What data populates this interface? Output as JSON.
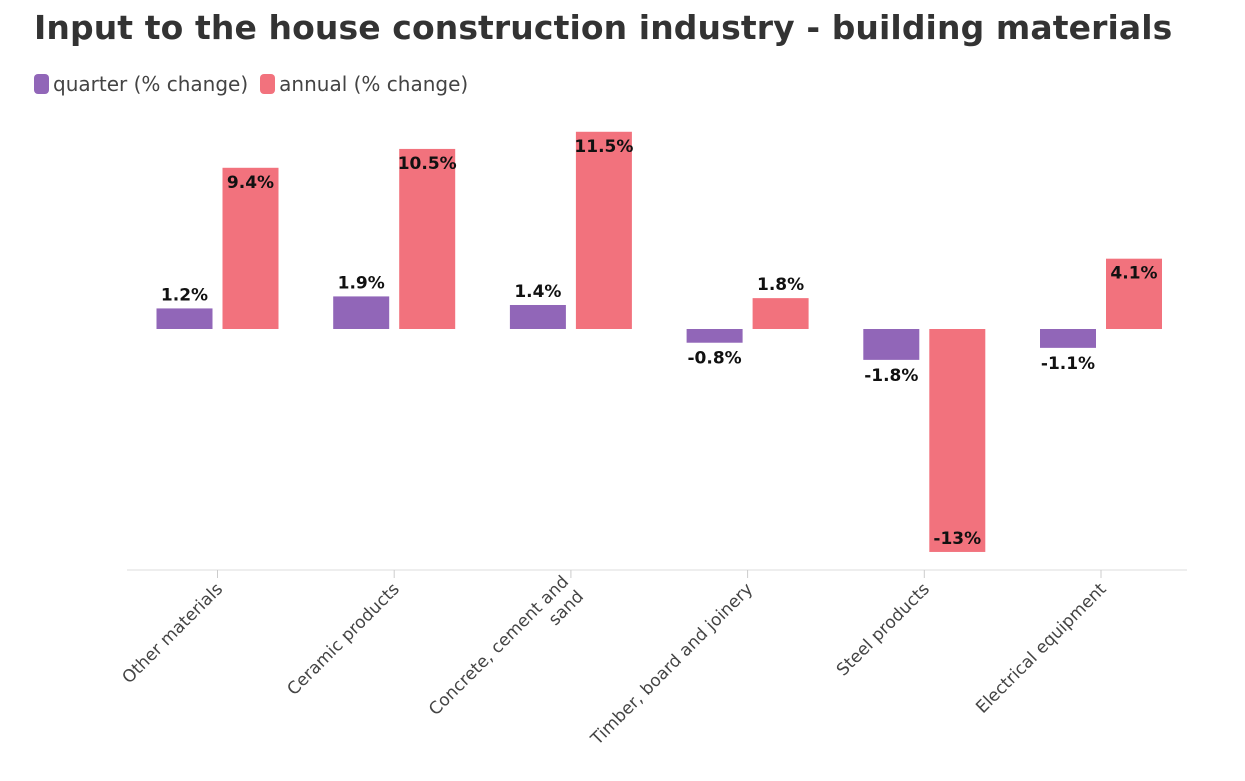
{
  "chart_data": {
    "type": "bar",
    "title": "Input to the house construction industry - building materials",
    "categories": [
      [
        "Other materials"
      ],
      [
        "Ceramic products"
      ],
      [
        "Concrete, cement and",
        "sand"
      ],
      [
        "Timber, board and joinery"
      ],
      [
        "Steel products"
      ],
      [
        "Electrical equipment"
      ]
    ],
    "series": [
      {
        "name": "quarter (% change)",
        "color": "#9166b8",
        "values": [
          1.2,
          1.9,
          1.4,
          -0.8,
          -1.8,
          -1.1
        ],
        "labels": [
          "1.2%",
          "1.9%",
          "1.4%",
          "-0.8%",
          "-1.8%",
          "-1.1%"
        ]
      },
      {
        "name": "annual (% change)",
        "color": "#f2727d",
        "values": [
          9.4,
          10.5,
          11.5,
          1.8,
          -13,
          4.1
        ],
        "labels": [
          "9.4%",
          "10.5%",
          "11.5%",
          "1.8%",
          "-13%",
          "4.1%"
        ]
      }
    ],
    "xlabel": "",
    "ylabel": "",
    "grid": false,
    "legend_position": "top-left"
  }
}
